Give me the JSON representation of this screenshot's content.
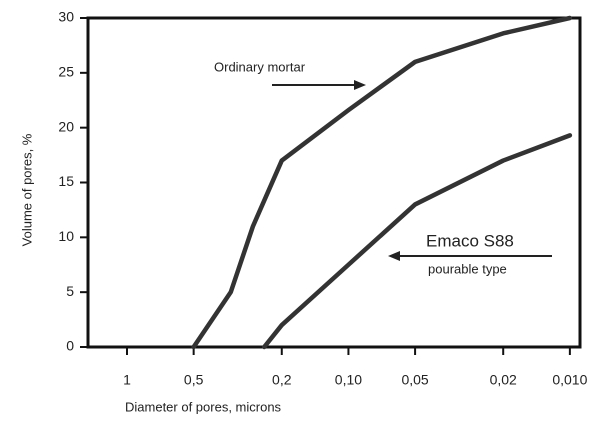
{
  "chart_data": {
    "type": "line",
    "xlabel": "Diameter of pores, microns",
    "ylabel": "Volume of pores, %",
    "xscale": "log",
    "xlim": [
      1.5,
      0.009
    ],
    "xticks": [
      1,
      {
        "value": 0.5,
        "label": "0,5"
      },
      {
        "value": 0.2,
        "label": "0,2"
      },
      {
        "value": 0.1,
        "label": "0,10"
      },
      {
        "value": 0.05,
        "label": "0,05"
      },
      {
        "value": 0.02,
        "label": "0,02"
      },
      {
        "value": 0.01,
        "label": "0,010"
      }
    ],
    "ylim": [
      0,
      30
    ],
    "yticks": [
      0,
      5,
      10,
      15,
      20,
      25,
      30
    ],
    "series": [
      {
        "name": "Ordinary mortar",
        "color": "#333333",
        "x": [
          0.5,
          0.34,
          0.27,
          0.2,
          0.1,
          0.05,
          0.02,
          0.01
        ],
        "values": [
          0,
          5,
          11,
          17,
          21.6,
          26,
          28.6,
          30
        ]
      },
      {
        "name": "Emaco S88",
        "color": "#333333",
        "x": [
          0.24,
          0.2,
          0.1,
          0.05,
          0.02,
          0.01
        ],
        "values": [
          0,
          2,
          7.5,
          13,
          17,
          19.3
        ]
      }
    ],
    "annotations": [
      "pourable type"
    ]
  }
}
